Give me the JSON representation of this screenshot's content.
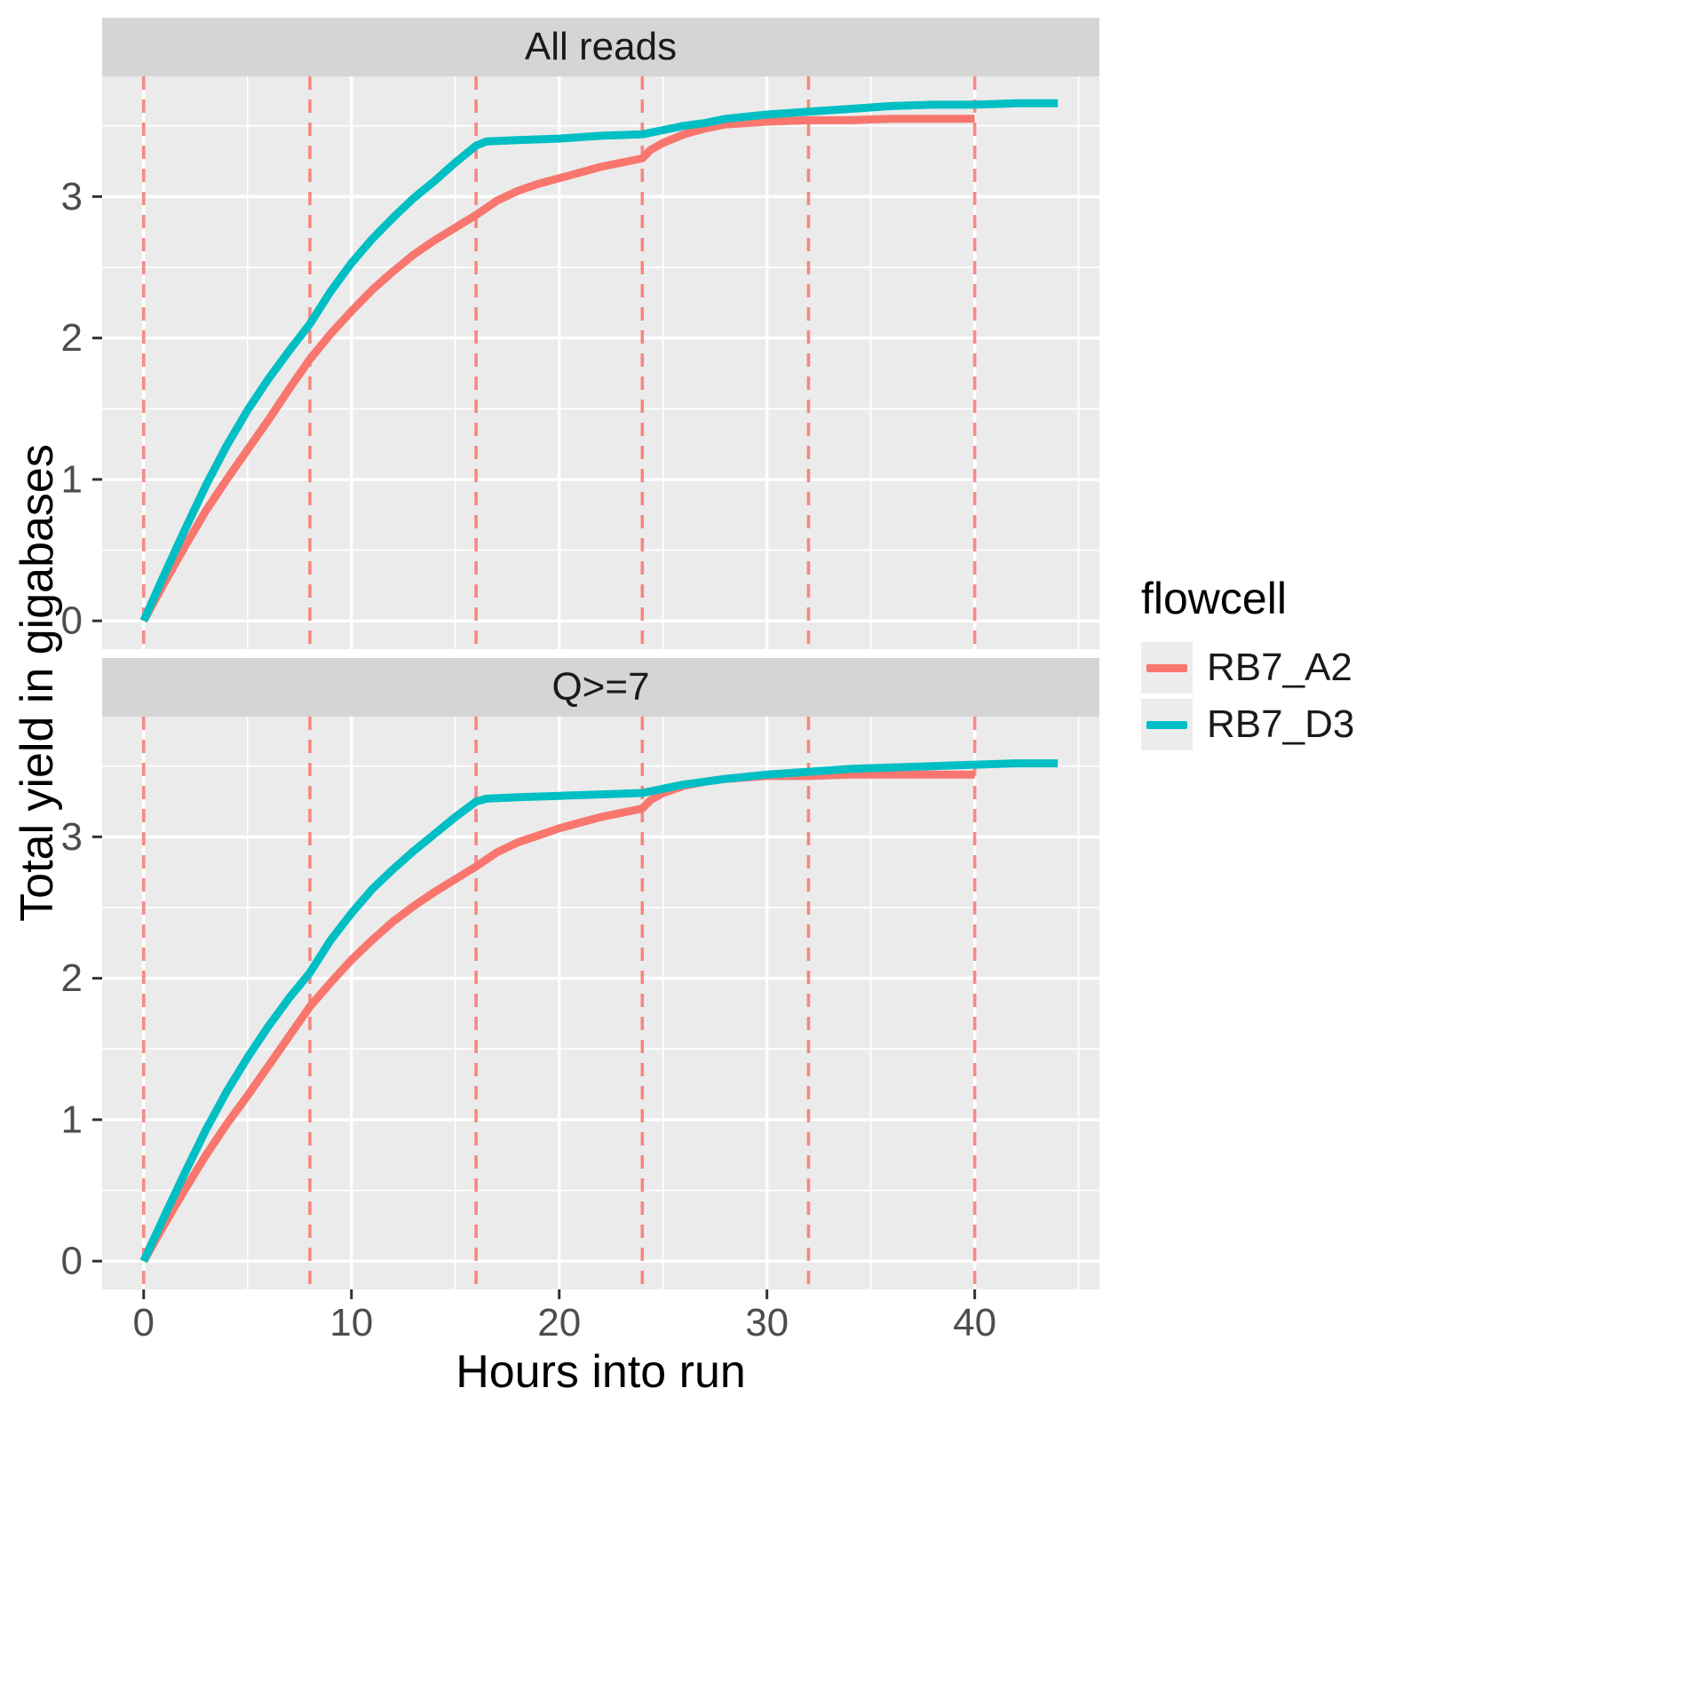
{
  "chart_data": {
    "type": "line",
    "title": "",
    "xlabel": "Hours into run",
    "ylabel": "Total yield in gigabases",
    "xlim": [
      -2,
      46
    ],
    "ylim": [
      -0.2,
      3.85
    ],
    "x_ticks": [
      0,
      10,
      20,
      30,
      40
    ],
    "x_minor": [
      5,
      15,
      25,
      35,
      45
    ],
    "y_ticks": [
      0,
      1,
      2,
      3
    ],
    "y_minor": [
      0.5,
      1.5,
      2.5,
      3.5
    ],
    "vlines": [
      0,
      8,
      16,
      24,
      32,
      40
    ],
    "grid": true,
    "legend_position": "right",
    "legend": {
      "title": "flowcell",
      "entries": [
        {
          "label": "RB7_A2",
          "color": "#F8766D"
        },
        {
          "label": "RB7_D3",
          "color": "#00BFC4"
        }
      ]
    },
    "colors": {
      "panel_bg": "#EBEBEB",
      "strip_bg": "#D5D5D5",
      "grid": "#FFFFFF",
      "vline": "#F8766D",
      "tick_label": "#4D4D4D",
      "tick_mark": "#333333",
      "axis_title": "#000000"
    },
    "facets": [
      {
        "label": "All reads",
        "series": [
          {
            "name": "RB7_A2",
            "color": "#F8766D",
            "x": [
              0,
              1,
              2,
              3,
              4,
              5,
              6,
              7,
              8,
              9,
              10,
              11,
              12,
              13,
              14,
              15,
              16,
              17,
              18,
              19,
              20,
              21,
              22,
              23,
              24,
              24.4,
              25,
              26,
              27,
              28,
              29,
              30,
              32,
              34,
              36,
              38,
              40
            ],
            "y": [
              0,
              0.27,
              0.53,
              0.78,
              1.0,
              1.21,
              1.42,
              1.64,
              1.85,
              2.03,
              2.19,
              2.34,
              2.47,
              2.59,
              2.69,
              2.78,
              2.87,
              2.97,
              3.04,
              3.09,
              3.13,
              3.17,
              3.21,
              3.24,
              3.27,
              3.33,
              3.38,
              3.44,
              3.48,
              3.51,
              3.52,
              3.53,
              3.54,
              3.54,
              3.55,
              3.55,
              3.55
            ]
          },
          {
            "name": "RB7_D3",
            "color": "#00BFC4",
            "x": [
              0,
              1,
              2,
              3,
              4,
              5,
              6,
              7,
              8,
              9,
              10,
              11,
              12,
              13,
              14,
              15,
              16,
              16.5,
              18,
              20,
              22,
              24,
              25,
              26,
              27,
              28,
              30,
              32,
              34,
              36,
              38,
              40,
              42,
              44
            ],
            "y": [
              0,
              0.33,
              0.65,
              0.96,
              1.24,
              1.49,
              1.71,
              1.91,
              2.1,
              2.33,
              2.53,
              2.7,
              2.85,
              2.99,
              3.11,
              3.24,
              3.36,
              3.39,
              3.4,
              3.41,
              3.43,
              3.44,
              3.47,
              3.5,
              3.52,
              3.55,
              3.58,
              3.6,
              3.62,
              3.64,
              3.65,
              3.65,
              3.66,
              3.66
            ]
          }
        ]
      },
      {
        "label": "Q>=7",
        "series": [
          {
            "name": "RB7_A2",
            "color": "#F8766D",
            "x": [
              0,
              1,
              2,
              3,
              4,
              5,
              6,
              7,
              8,
              9,
              10,
              11,
              12,
              13,
              14,
              15,
              16,
              17,
              18,
              19,
              20,
              21,
              22,
              23,
              24,
              24.4,
              25,
              26,
              27,
              28,
              29,
              30,
              32,
              34,
              36,
              38,
              40
            ],
            "y": [
              0,
              0.26,
              0.51,
              0.75,
              0.97,
              1.17,
              1.38,
              1.59,
              1.8,
              1.97,
              2.13,
              2.27,
              2.4,
              2.51,
              2.61,
              2.7,
              2.79,
              2.89,
              2.96,
              3.01,
              3.06,
              3.1,
              3.14,
              3.17,
              3.2,
              3.26,
              3.31,
              3.36,
              3.39,
              3.41,
              3.42,
              3.43,
              3.43,
              3.44,
              3.44,
              3.44,
              3.44
            ]
          },
          {
            "name": "RB7_D3",
            "color": "#00BFC4",
            "x": [
              0,
              1,
              2,
              3,
              4,
              5,
              6,
              7,
              8,
              9,
              10,
              11,
              12,
              13,
              14,
              15,
              16,
              16.5,
              18,
              20,
              22,
              24,
              25,
              26,
              27,
              28,
              30,
              32,
              34,
              36,
              38,
              40,
              42,
              44
            ],
            "y": [
              0,
              0.32,
              0.63,
              0.93,
              1.2,
              1.44,
              1.66,
              1.86,
              2.04,
              2.27,
              2.46,
              2.63,
              2.77,
              2.9,
              3.02,
              3.14,
              3.25,
              3.27,
              3.28,
              3.29,
              3.3,
              3.31,
              3.34,
              3.37,
              3.39,
              3.41,
              3.44,
              3.46,
              3.48,
              3.49,
              3.5,
              3.51,
              3.52,
              3.52
            ]
          }
        ]
      }
    ]
  }
}
